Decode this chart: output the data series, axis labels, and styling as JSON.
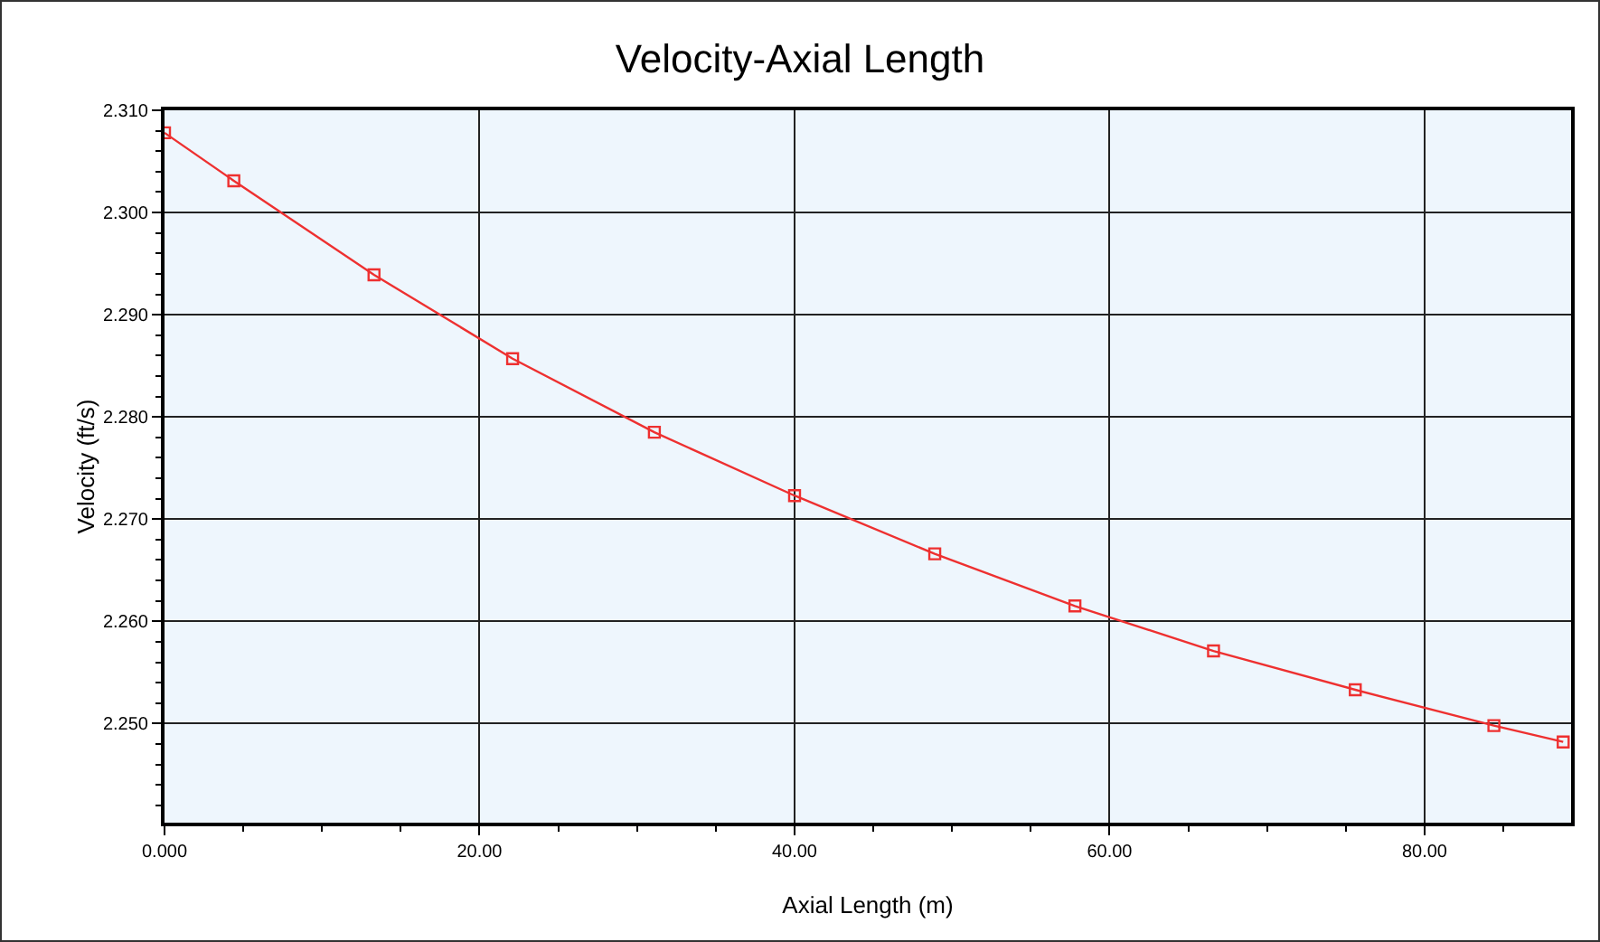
{
  "chart_data": {
    "type": "line",
    "title": "Velocity-Axial Length",
    "xlabel": "Axial Length (m)",
    "ylabel": "Velocity (ft/s)",
    "x": [
      0,
      4.4,
      13.3,
      22.1,
      31.1,
      40.0,
      48.9,
      57.8,
      66.6,
      75.6,
      84.4,
      88.8
    ],
    "series": [
      {
        "color": "#ee3030",
        "values": [
          2.3078,
          2.3031,
          2.2939,
          2.2857,
          2.2785,
          2.2723,
          2.2666,
          2.2615,
          2.2571,
          2.2533,
          2.2498,
          2.2482
        ]
      }
    ],
    "xlim": [
      0,
      89.3
    ],
    "ylim": [
      2.2403,
      2.31
    ],
    "xticks": [
      {
        "value": 0,
        "label": "0.000"
      },
      {
        "value": 20,
        "label": "20.00"
      },
      {
        "value": 40,
        "label": "40.00"
      },
      {
        "value": 60,
        "label": "60.00"
      },
      {
        "value": 80,
        "label": "80.00"
      }
    ],
    "yticks": [
      {
        "value": 2.25,
        "label": "2.250"
      },
      {
        "value": 2.26,
        "label": "2.260"
      },
      {
        "value": 2.27,
        "label": "2.270"
      },
      {
        "value": 2.28,
        "label": "2.280"
      },
      {
        "value": 2.29,
        "label": "2.290"
      },
      {
        "value": 2.3,
        "label": "2.300"
      },
      {
        "value": 2.31,
        "label": "2.310"
      }
    ],
    "grid": true,
    "marker": "square",
    "line_style": "solid"
  }
}
